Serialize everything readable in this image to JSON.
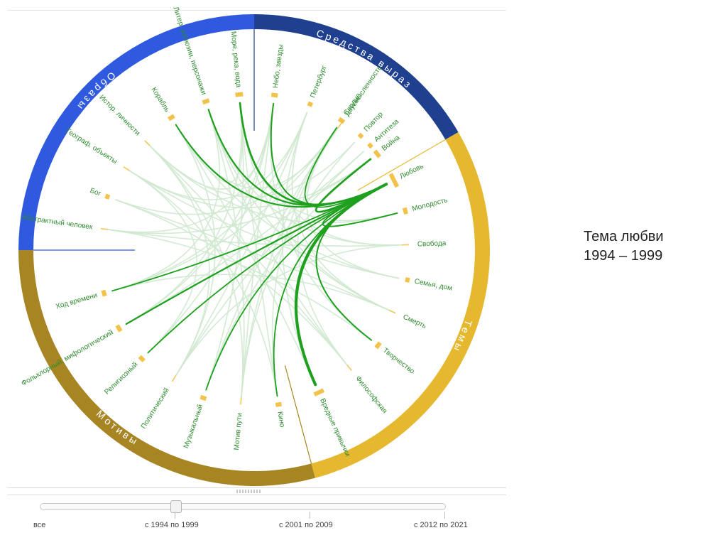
{
  "title": {
    "line1": "Тема любви",
    "line2": "1994 – 1999"
  },
  "colors": {
    "themes": "#e6b82f",
    "motifs": "#a78523",
    "images": "#2f5ae0",
    "means": "#1f3f8f",
    "highlight": "#1fa01f",
    "faint": "#cfe8cf",
    "node_marker": "#f3c24a",
    "label": "#2e8b2e"
  },
  "groups": [
    {
      "id": "means",
      "label": "Средства выраз",
      "start": 270,
      "end": 330
    },
    {
      "id": "themes",
      "label": "Темы",
      "start": 330,
      "end": 435
    },
    {
      "id": "motifs",
      "label": "Мотивы",
      "start": 435,
      "end": 540
    },
    {
      "id": "images",
      "label": "Образы",
      "start": 180,
      "end": 270
    }
  ],
  "nodes": [
    {
      "id": "dvusm",
      "label": "Двусмысленность",
      "angle": 304.5
    },
    {
      "id": "povtor",
      "label": "Повтор",
      "angle": 313,
      "value": 0.5
    },
    {
      "id": "voina",
      "label": "Война",
      "angle": 322,
      "value": 4
    },
    {
      "id": "lubov",
      "label": "Любовь",
      "angle": 333.5,
      "value": 12,
      "hub": true
    },
    {
      "id": "molodost",
      "label": "Молодость",
      "angle": 345.5,
      "value": 2.5
    },
    {
      "id": "svoboda",
      "label": "Свобода",
      "angle": 358
    },
    {
      "id": "semya",
      "label": "Семья, дом",
      "angle": 371,
      "value": 0.5
    },
    {
      "id": "smert",
      "label": "Смерть",
      "angle": 384
    },
    {
      "id": "tvorchestvo",
      "label": "Творчество",
      "angle": 397.5,
      "value": 2.5
    },
    {
      "id": "filosof",
      "label": "Философская",
      "angle": 411
    },
    {
      "id": "vrednye",
      "label": "Вредные привычки",
      "angle": 425.5,
      "value": 7
    },
    {
      "id": "kino",
      "label": "Кино",
      "angle": 441,
      "value": 2
    },
    {
      "id": "motiv_puti",
      "label": "Мотив пути",
      "angle": 455
    },
    {
      "id": "muzyk",
      "label": "Музыкальный",
      "angle": 469,
      "value": 2
    },
    {
      "id": "polit",
      "label": "Политический",
      "angle": 482
    },
    {
      "id": "relig",
      "label": "Религиозный",
      "angle": 496,
      "value": 2
    },
    {
      "id": "folklor",
      "label": "Фольклорный, мифологический",
      "angle": 510,
      "value": 3
    },
    {
      "id": "hod_vremeni",
      "label": "Ход времени",
      "angle": 524,
      "value": 2
    },
    {
      "id": "abstr",
      "label": "Абстрактный человек",
      "angle": 548
    },
    {
      "id": "bog",
      "label": "Бог",
      "angle": 560,
      "value": 0.5
    },
    {
      "id": "geograf",
      "label": "Географ. объекты",
      "angle": 572.5
    },
    {
      "id": "istor",
      "label": "Истор. личности",
      "angle": 585
    },
    {
      "id": "korabl",
      "label": "Корабль",
      "angle": 598,
      "value": 2.5
    },
    {
      "id": "liter",
      "label": "Литер. аллюзии, персонажи",
      "angle": 612,
      "value": 3
    },
    {
      "id": "more",
      "label": "Море, река, вода",
      "angle": 624.5,
      "value": 4
    },
    {
      "id": "nebo",
      "label": "Небо, звезды",
      "angle": 637.5,
      "value": 2.5
    },
    {
      "id": "peterburg",
      "label": "Петербург",
      "angle": 651,
      "value": 0.5
    },
    {
      "id": "serdce",
      "label": "Сердце",
      "angle": 664,
      "value": 2
    },
    {
      "id": "antiteza",
      "label": "Антитеза",
      "angle": 678,
      "value": 0.5
    }
  ],
  "links": [
    {
      "source": "lubov",
      "target": "voina",
      "value": 4
    },
    {
      "source": "lubov",
      "target": "molodost",
      "value": 2.5
    },
    {
      "source": "lubov",
      "target": "tvorchestvo",
      "value": 2.5
    },
    {
      "source": "lubov",
      "target": "vrednye",
      "value": 7
    },
    {
      "source": "lubov",
      "target": "kino",
      "value": 2
    },
    {
      "source": "lubov",
      "target": "muzyk",
      "value": 2
    },
    {
      "source": "lubov",
      "target": "relig",
      "value": 2
    },
    {
      "source": "lubov",
      "target": "folklor",
      "value": 3
    },
    {
      "source": "lubov",
      "target": "hod_vremeni",
      "value": 2
    },
    {
      "source": "lubov",
      "target": "korabl",
      "value": 2.5
    },
    {
      "source": "lubov",
      "target": "liter",
      "value": 3
    },
    {
      "source": "lubov",
      "target": "more",
      "value": 4
    },
    {
      "source": "lubov",
      "target": "nebo",
      "value": 2.5
    },
    {
      "source": "lubov",
      "target": "serdce",
      "value": 2
    }
  ],
  "background_links": [
    [
      "dvusm",
      "kino"
    ],
    [
      "dvusm",
      "korabl"
    ],
    [
      "povtor",
      "motiv_puti"
    ],
    [
      "povtor",
      "istor"
    ],
    [
      "voina",
      "muzyk"
    ],
    [
      "voina",
      "geograf"
    ],
    [
      "voina",
      "abstr"
    ],
    [
      "molodost",
      "more"
    ],
    [
      "molodost",
      "istor"
    ],
    [
      "svoboda",
      "nebo"
    ],
    [
      "svoboda",
      "liter"
    ],
    [
      "svoboda",
      "polit"
    ],
    [
      "svoboda",
      "abstr"
    ],
    [
      "semya",
      "serdce"
    ],
    [
      "semya",
      "korabl"
    ],
    [
      "semya",
      "geograf"
    ],
    [
      "smert",
      "peterburg"
    ],
    [
      "smert",
      "more"
    ],
    [
      "smert",
      "bog"
    ],
    [
      "smert",
      "hod_vremeni"
    ],
    [
      "tvorchestvo",
      "nebo"
    ],
    [
      "tvorchestvo",
      "abstr"
    ],
    [
      "filosof",
      "serdce"
    ],
    [
      "filosof",
      "liter"
    ],
    [
      "filosof",
      "istor"
    ],
    [
      "filosof",
      "bog"
    ],
    [
      "vrednye",
      "peterburg"
    ],
    [
      "vrednye",
      "korabl"
    ],
    [
      "kino",
      "more"
    ],
    [
      "kino",
      "geograf"
    ],
    [
      "motiv_puti",
      "nebo"
    ],
    [
      "motiv_puti",
      "liter"
    ],
    [
      "motiv_puti",
      "istor"
    ],
    [
      "muzyk",
      "serdce"
    ],
    [
      "muzyk",
      "more"
    ],
    [
      "polit",
      "peterburg"
    ],
    [
      "polit",
      "istor"
    ],
    [
      "polit",
      "korabl"
    ],
    [
      "relig",
      "nebo"
    ],
    [
      "relig",
      "geograf"
    ],
    [
      "folklor",
      "more"
    ],
    [
      "folklor",
      "antiteza"
    ],
    [
      "hod_vremeni",
      "liter"
    ],
    [
      "hod_vremeni",
      "serdce"
    ],
    [
      "abstr",
      "nebo"
    ],
    [
      "bog",
      "serdce"
    ],
    [
      "geograf",
      "peterburg"
    ],
    [
      "istor",
      "nebo"
    ],
    [
      "korabl",
      "more"
    ],
    [
      "liter",
      "smert"
    ],
    [
      "antiteza",
      "polit"
    ],
    [
      "serdce",
      "motiv_puti"
    ],
    [
      "peterburg",
      "hod_vremeni"
    ],
    [
      "nebo",
      "folklor"
    ]
  ],
  "timeline": {
    "labels": [
      "все",
      "с 1994 по 1999",
      "с 2001 по 2009",
      "с 2012 по 2021"
    ],
    "selected": 1
  }
}
